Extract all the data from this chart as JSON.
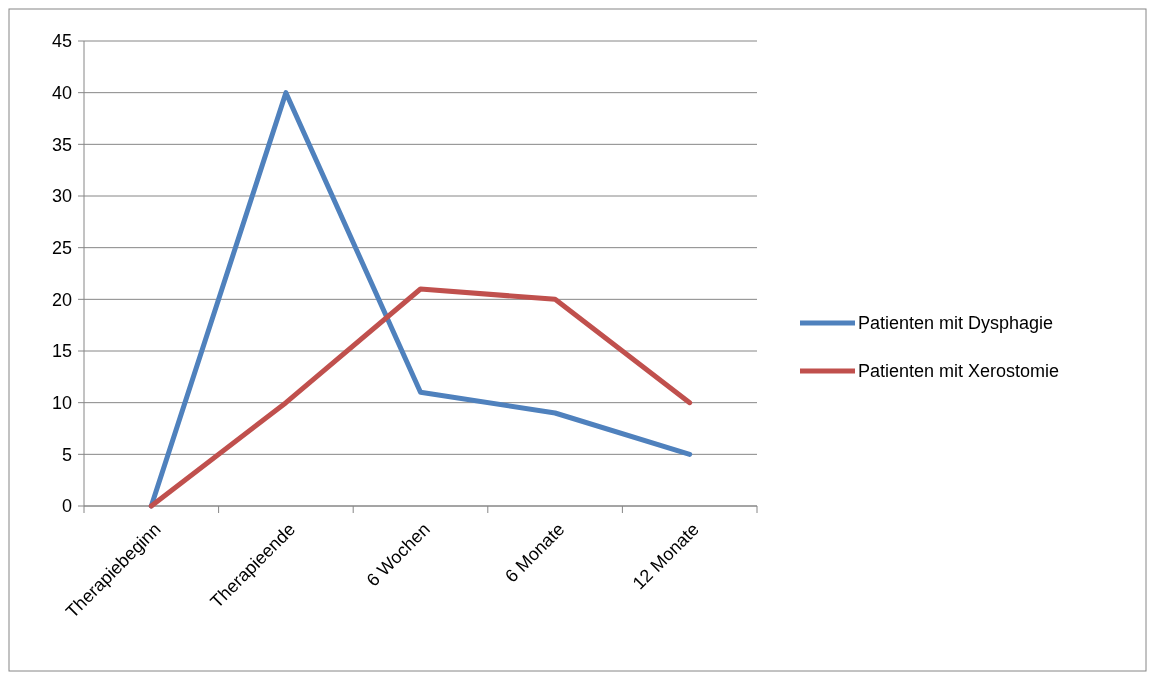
{
  "chart_data": {
    "type": "line",
    "categories": [
      "Therapiebeginn",
      "Therapieende",
      "6 Wochen",
      "6 Monate",
      "12 Monate"
    ],
    "series": [
      {
        "name": "Patienten mit Dysphagie",
        "color": "#4f81bd",
        "values": [
          0,
          40,
          11,
          9,
          5
        ]
      },
      {
        "name": "Patienten mit Xerostomie",
        "color": "#c0504d",
        "values": [
          0,
          10,
          21,
          20,
          10
        ]
      }
    ],
    "ylim": [
      0,
      45
    ],
    "yticks": [
      0,
      5,
      10,
      15,
      20,
      25,
      30,
      35,
      40,
      45
    ],
    "grid": "y",
    "legend": "right",
    "marker": "none",
    "line_style": "solid"
  }
}
